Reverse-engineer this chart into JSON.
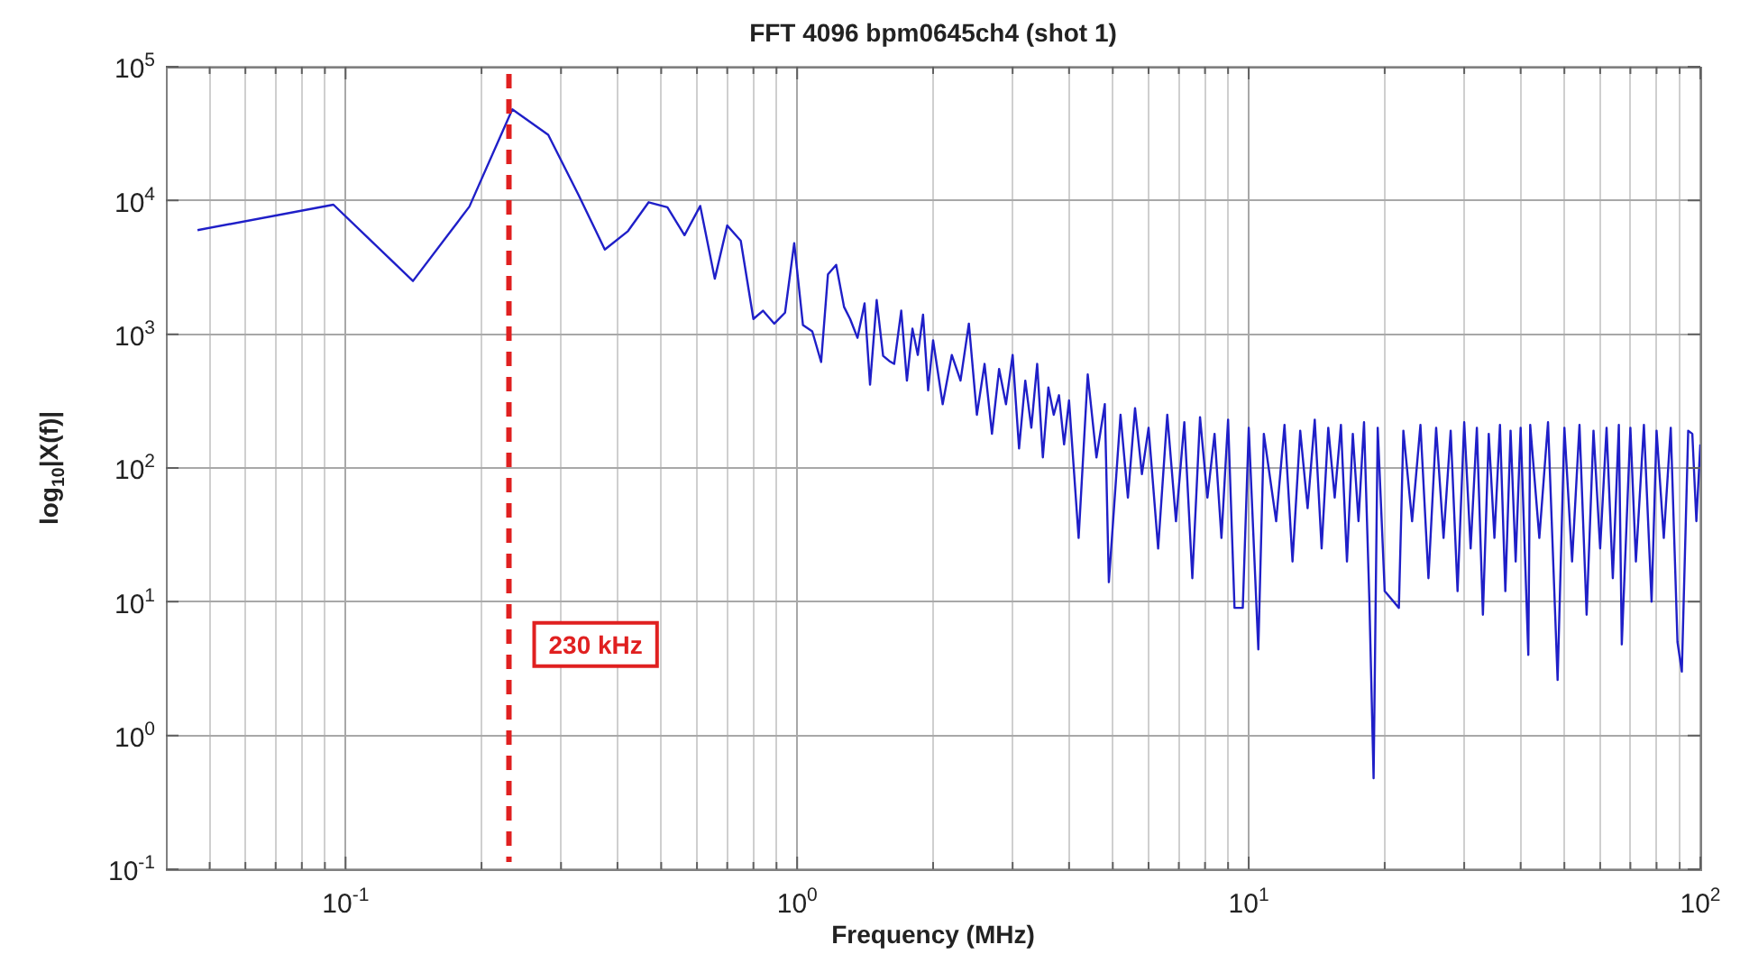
{
  "chart_data": {
    "type": "line",
    "title": "FFT 4096 bpm0645ch4 (shot 1)",
    "xlabel": "Frequency (MHz)",
    "ylabel": "log$_{10}$|X(f)|",
    "log": "xy",
    "grid": true,
    "marker": "none",
    "line_style": "solid",
    "legend": false,
    "color": "#1f1fc8",
    "x": [
      0.047,
      0.094,
      0.141,
      0.188,
      0.234,
      0.281,
      0.328,
      0.375,
      0.422,
      0.469,
      0.516,
      0.563,
      0.61,
      0.657,
      0.7,
      0.75,
      0.8,
      0.84,
      0.89,
      0.94,
      0.985,
      1.03,
      1.08,
      1.13,
      1.17,
      1.22,
      1.27,
      1.31,
      1.36,
      1.41,
      1.45,
      1.5,
      1.55,
      1.6,
      1.64,
      1.7,
      1.75,
      1.8,
      1.85,
      1.9,
      1.95,
      2.0,
      2.1,
      2.2,
      2.3,
      2.4,
      2.5,
      2.6,
      2.7,
      2.8,
      2.9,
      3.0,
      3.1,
      3.2,
      3.3,
      3.4,
      3.5,
      3.6,
      3.7,
      3.8,
      3.9,
      4.0,
      4.2,
      4.4,
      4.6,
      4.8,
      4.9,
      5.2,
      5.4,
      5.6,
      5.8,
      6.0,
      6.3,
      6.6,
      6.9,
      7.2,
      7.5,
      7.8,
      8.1,
      8.4,
      8.7,
      9.0,
      9.3,
      9.7,
      10.0,
      10.5,
      10.8,
      11.5,
      12,
      12.5,
      13,
      13.5,
      14,
      14.5,
      15,
      15.5,
      16,
      16.5,
      17,
      17.5,
      18,
      18.5,
      18.9,
      19.3,
      20,
      21.5,
      22,
      23,
      24,
      25,
      26,
      27,
      28,
      29,
      30,
      31,
      32,
      33,
      34,
      35,
      36,
      37,
      38,
      39,
      40,
      41.6,
      42,
      44,
      46,
      48.3,
      50,
      52,
      54,
      56,
      58,
      60,
      62,
      64,
      66,
      67,
      70,
      72,
      75,
      78,
      80,
      83,
      86,
      89,
      91,
      94,
      96,
      98,
      100
    ],
    "values": [
      6000,
      9300,
      2500,
      9000,
      48000,
      31000,
      11000,
      4300,
      5900,
      9700,
      8900,
      5500,
      9100,
      2600,
      6500,
      5000,
      1300,
      1500,
      1200,
      1450,
      4800,
      1170,
      1050,
      620,
      2800,
      3300,
      1600,
      1300,
      940,
      1700,
      420,
      1800,
      690,
      630,
      600,
      1500,
      450,
      1100,
      700,
      1400,
      380,
      900,
      300,
      700,
      450,
      1200,
      250,
      600,
      180,
      550,
      300,
      700,
      140,
      450,
      200,
      600,
      120,
      400,
      250,
      350,
      150,
      320,
      30,
      500,
      120,
      300,
      14,
      250,
      60,
      280,
      90,
      200,
      25,
      250,
      40,
      220,
      15,
      240,
      60,
      180,
      30,
      230,
      9,
      9,
      200,
      4.4,
      180,
      40,
      210,
      20,
      190,
      50,
      230,
      25,
      200,
      60,
      210,
      20,
      180,
      40,
      220,
      10,
      0.48,
      200,
      12,
      9,
      190,
      40,
      210,
      15,
      200,
      30,
      190,
      12,
      220,
      25,
      200,
      8,
      180,
      30,
      210,
      12,
      190,
      20,
      200,
      4,
      210,
      30,
      220,
      2.6,
      200,
      20,
      210,
      8,
      190,
      25,
      200,
      15,
      210,
      4.8,
      200,
      20,
      210,
      10,
      190,
      30,
      200,
      5,
      3,
      190,
      180,
      40,
      150
    ],
    "xlim": [
      0.04,
      100
    ],
    "ylim": [
      0.1,
      100000
    ],
    "xticks": [
      {
        "value": 0.05,
        "label": null
      },
      {
        "value": 0.06,
        "label": null
      },
      {
        "value": 0.07,
        "label": null
      },
      {
        "value": 0.08,
        "label": null
      },
      {
        "value": 0.09,
        "label": null
      },
      {
        "value": 0.1,
        "label": "10$^{-1}$"
      },
      {
        "value": 0.2,
        "label": null
      },
      {
        "value": 0.3,
        "label": null
      },
      {
        "value": 0.4,
        "label": null
      },
      {
        "value": 0.5,
        "label": null
      },
      {
        "value": 0.6,
        "label": null
      },
      {
        "value": 0.7,
        "label": null
      },
      {
        "value": 0.8,
        "label": null
      },
      {
        "value": 0.9,
        "label": null
      },
      {
        "value": 1,
        "label": "10$^{0}$"
      },
      {
        "value": 2,
        "label": null
      },
      {
        "value": 3,
        "label": null
      },
      {
        "value": 4,
        "label": null
      },
      {
        "value": 5,
        "label": null
      },
      {
        "value": 6,
        "label": null
      },
      {
        "value": 7,
        "label": null
      },
      {
        "value": 8,
        "label": null
      },
      {
        "value": 9,
        "label": null
      },
      {
        "value": 10,
        "label": "10$^{1}$"
      },
      {
        "value": 20,
        "label": null
      },
      {
        "value": 30,
        "label": null
      },
      {
        "value": 40,
        "label": null
      },
      {
        "value": 50,
        "label": null
      },
      {
        "value": 60,
        "label": null
      },
      {
        "value": 70,
        "label": null
      },
      {
        "value": 80,
        "label": null
      },
      {
        "value": 90,
        "label": null
      },
      {
        "value": 100,
        "label": "10$^{2}$"
      }
    ],
    "yticks": [
      {
        "value": 0.1,
        "label": "10$^{-1}$"
      },
      {
        "value": 1,
        "label": "10$^{0}$"
      },
      {
        "value": 10,
        "label": "10$^{1}$"
      },
      {
        "value": 100,
        "label": "10$^{2}$"
      },
      {
        "value": 1000,
        "label": "10$^{3}$"
      },
      {
        "value": 10000,
        "label": "10$^{4}$"
      },
      {
        "value": 100000,
        "label": "10$^{5}$"
      }
    ],
    "ref_lines": [
      {
        "axis": "x",
        "value": 0.23,
        "label": "230 kHz",
        "color": "#e02020",
        "line_style": "dashed"
      }
    ]
  }
}
